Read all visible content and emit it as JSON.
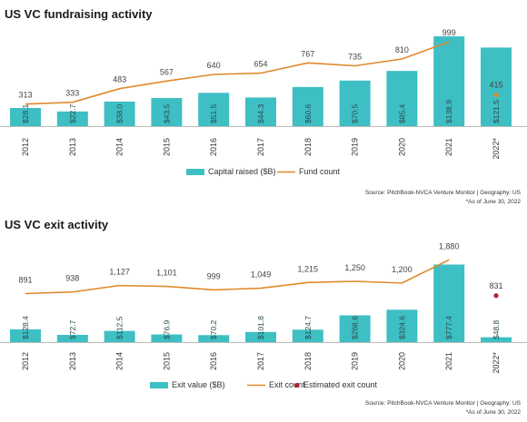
{
  "chart_data": [
    {
      "type": "bar+line",
      "title": "US VC fundraising activity",
      "categories": [
        "2012",
        "2013",
        "2014",
        "2015",
        "2016",
        "2017",
        "2018",
        "2019",
        "2020",
        "2021",
        "2022*"
      ],
      "series": [
        {
          "name": "Capital raised ($B)",
          "kind": "bar",
          "color": "#3dbfc4",
          "values": [
            28.1,
            22.7,
            38.0,
            43.5,
            51.5,
            44.3,
            60.6,
            70.5,
            85.4,
            138.9,
            121.5
          ],
          "labels": [
            "$28.1",
            "$22.7",
            "$38.0",
            "$43.5",
            "$51.5",
            "$44.3",
            "$60.6",
            "$70.5",
            "$85.4",
            "$138.9",
            "$121.5"
          ]
        },
        {
          "name": "Fund count",
          "kind": "line",
          "color": "#e08a2c",
          "values": [
            313,
            333,
            483,
            567,
            640,
            654,
            767,
            735,
            810,
            999,
            null
          ],
          "labels": [
            "313",
            "333",
            "483",
            "567",
            "640",
            "654",
            "767",
            "735",
            "810",
            "999",
            ""
          ]
        }
      ],
      "estimate": {
        "category": "2022*",
        "value": 415,
        "label": "415",
        "color": "#e08a2c"
      },
      "source": "Source: PitchBook-NVCA Venture Monitor  |  Geography: US",
      "note": "*As of June 30, 2022"
    },
    {
      "type": "bar+line",
      "title": "US VC exit activity",
      "categories": [
        "2012",
        "2013",
        "2014",
        "2015",
        "2016",
        "2017",
        "2018",
        "2019",
        "2020",
        "2021",
        "2022*"
      ],
      "series": [
        {
          "name": "Exit value ($B)",
          "kind": "bar",
          "color": "#3dbfc4",
          "values": [
            128.4,
            72.7,
            112.5,
            76.9,
            70.2,
            101.8,
            124.7,
            268.6,
            324.6,
            777.4,
            48.8
          ],
          "labels": [
            "$128.4",
            "$72.7",
            "$112.5",
            "$76.9",
            "$70.2",
            "$101.8",
            "$124.7",
            "$268.6",
            "$324.6",
            "$777.4",
            "$48.8"
          ]
        },
        {
          "name": "Exit count",
          "kind": "line",
          "color": "#e08a2c",
          "values": [
            891,
            938,
            1127,
            1101,
            999,
            1049,
            1215,
            1250,
            1200,
            1880,
            null
          ],
          "labels": [
            "891",
            "938",
            "1,127",
            "1,101",
            "999",
            "1,049",
            "1,215",
            "1,250",
            "1,200",
            "1,880",
            ""
          ]
        }
      ],
      "estimate": {
        "name": "Estimated exit count",
        "category": "2022*",
        "value": 831,
        "label": "831",
        "color": "#b5202e"
      },
      "source": "Source: PitchBook-NVCA Venture Monitor  |  Geography: US",
      "note": "*As of June 30, 2022"
    }
  ]
}
